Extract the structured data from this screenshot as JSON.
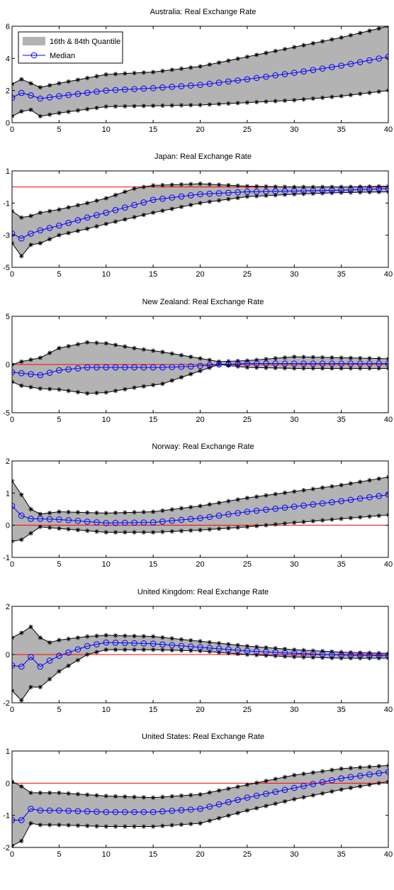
{
  "chart_data": [
    {
      "type": "area",
      "title": "Australia: Real Exchange Rate",
      "xlim": [
        0,
        40
      ],
      "ylim": [
        0,
        6
      ],
      "xticks": [
        0,
        5,
        10,
        15,
        20,
        25,
        30,
        35,
        40
      ],
      "yticks": [
        0,
        2,
        4,
        6
      ],
      "reference_y": 0,
      "legend": {
        "placement": "top-left",
        "entries": [
          "16th & 84th Quantile",
          "Median"
        ]
      },
      "anchors": {
        "lower": [
          [
            0,
            0.4
          ],
          [
            1,
            0.7
          ],
          [
            2,
            0.8
          ],
          [
            3,
            0.4
          ],
          [
            5,
            0.6
          ],
          [
            10,
            1.0
          ],
          [
            15,
            1.05
          ],
          [
            20,
            1.1
          ],
          [
            25,
            1.25
          ],
          [
            30,
            1.4
          ],
          [
            35,
            1.65
          ],
          [
            40,
            2.0
          ]
        ],
        "upper": [
          [
            0,
            2.4
          ],
          [
            1,
            2.7
          ],
          [
            2,
            2.45
          ],
          [
            3,
            2.2
          ],
          [
            5,
            2.45
          ],
          [
            10,
            3.0
          ],
          [
            15,
            3.15
          ],
          [
            20,
            3.5
          ],
          [
            25,
            4.1
          ],
          [
            30,
            4.7
          ],
          [
            35,
            5.3
          ],
          [
            40,
            6.0
          ]
        ],
        "median": [
          [
            0,
            1.55
          ],
          [
            1,
            1.85
          ],
          [
            2,
            1.7
          ],
          [
            3,
            1.5
          ],
          [
            5,
            1.65
          ],
          [
            10,
            2.0
          ],
          [
            15,
            2.15
          ],
          [
            20,
            2.35
          ],
          [
            25,
            2.7
          ],
          [
            30,
            3.1
          ],
          [
            35,
            3.55
          ],
          [
            40,
            4.1
          ]
        ]
      }
    },
    {
      "type": "area",
      "title": "Japan: Real Exchange Rate",
      "xlim": [
        0,
        40
      ],
      "ylim": [
        -5,
        1
      ],
      "xticks": [
        0,
        5,
        10,
        15,
        20,
        25,
        30,
        35,
        40
      ],
      "yticks": [
        -5,
        -3,
        -1,
        1
      ],
      "reference_y": 0,
      "anchors": {
        "lower": [
          [
            0,
            -3.5
          ],
          [
            1,
            -4.3
          ],
          [
            2,
            -3.6
          ],
          [
            3,
            -3.5
          ],
          [
            5,
            -3.0
          ],
          [
            8,
            -2.6
          ],
          [
            10,
            -2.3
          ],
          [
            15,
            -1.6
          ],
          [
            20,
            -1.0
          ],
          [
            25,
            -0.6
          ],
          [
            30,
            -0.45
          ],
          [
            35,
            -0.35
          ],
          [
            40,
            -0.3
          ]
        ],
        "upper": [
          [
            0,
            -1.5
          ],
          [
            1,
            -1.9
          ],
          [
            2,
            -1.8
          ],
          [
            3,
            -1.6
          ],
          [
            5,
            -1.4
          ],
          [
            8,
            -1.0
          ],
          [
            10,
            -0.7
          ],
          [
            13,
            -0.1
          ],
          [
            15,
            0.1
          ],
          [
            20,
            0.2
          ],
          [
            25,
            0.05
          ],
          [
            30,
            0.0
          ],
          [
            35,
            0.0
          ],
          [
            40,
            0.05
          ]
        ],
        "median": [
          [
            0,
            -2.9
          ],
          [
            1,
            -3.2
          ],
          [
            2,
            -2.9
          ],
          [
            3,
            -2.7
          ],
          [
            5,
            -2.4
          ],
          [
            8,
            -1.9
          ],
          [
            10,
            -1.6
          ],
          [
            15,
            -0.8
          ],
          [
            20,
            -0.45
          ],
          [
            25,
            -0.3
          ],
          [
            30,
            -0.25
          ],
          [
            35,
            -0.2
          ],
          [
            40,
            -0.1
          ]
        ]
      }
    },
    {
      "type": "area",
      "title": "New Zealand: Real Exchange Rate",
      "xlim": [
        0,
        40
      ],
      "ylim": [
        -5,
        5
      ],
      "xticks": [
        0,
        5,
        10,
        15,
        20,
        25,
        30,
        35,
        40
      ],
      "yticks": [
        -5,
        0,
        5
      ],
      "reference_y": 0,
      "anchors": {
        "lower": [
          [
            0,
            -1.8
          ],
          [
            1,
            -2.2
          ],
          [
            3,
            -2.5
          ],
          [
            5,
            -2.6
          ],
          [
            8,
            -3.0
          ],
          [
            10,
            -2.9
          ],
          [
            13,
            -2.4
          ],
          [
            16,
            -2.0
          ],
          [
            19,
            -1.0
          ],
          [
            22,
            0.0
          ],
          [
            25,
            -0.3
          ],
          [
            30,
            -0.4
          ],
          [
            35,
            -0.4
          ],
          [
            40,
            -0.4
          ]
        ],
        "upper": [
          [
            0,
            0.0
          ],
          [
            1,
            0.3
          ],
          [
            3,
            0.7
          ],
          [
            5,
            1.7
          ],
          [
            8,
            2.3
          ],
          [
            10,
            2.2
          ],
          [
            13,
            1.7
          ],
          [
            16,
            1.3
          ],
          [
            19,
            0.8
          ],
          [
            22,
            0.3
          ],
          [
            25,
            0.4
          ],
          [
            30,
            0.8
          ],
          [
            35,
            0.7
          ],
          [
            40,
            0.6
          ]
        ],
        "median": [
          [
            0,
            -0.8
          ],
          [
            1,
            -0.9
          ],
          [
            3,
            -1.1
          ],
          [
            5,
            -0.6
          ],
          [
            8,
            -0.3
          ],
          [
            10,
            -0.3
          ],
          [
            13,
            -0.3
          ],
          [
            16,
            -0.3
          ],
          [
            19,
            -0.2
          ],
          [
            22,
            0.0
          ],
          [
            25,
            0.1
          ],
          [
            30,
            0.1
          ],
          [
            35,
            0.1
          ],
          [
            40,
            0.1
          ]
        ]
      }
    },
    {
      "type": "area",
      "title": "Norway: Real Exchange Rate",
      "xlim": [
        0,
        40
      ],
      "ylim": [
        -1,
        2
      ],
      "xticks": [
        0,
        5,
        10,
        15,
        20,
        25,
        30,
        35,
        40
      ],
      "yticks": [
        -1,
        0,
        1,
        2
      ],
      "reference_y": 0,
      "anchors": {
        "lower": [
          [
            0,
            -0.5
          ],
          [
            1,
            -0.45
          ],
          [
            2,
            -0.25
          ],
          [
            3,
            -0.05
          ],
          [
            5,
            -0.1
          ],
          [
            10,
            -0.22
          ],
          [
            15,
            -0.22
          ],
          [
            20,
            -0.15
          ],
          [
            25,
            -0.05
          ],
          [
            30,
            0.08
          ],
          [
            35,
            0.2
          ],
          [
            40,
            0.32
          ]
        ],
        "upper": [
          [
            0,
            1.38
          ],
          [
            1,
            0.95
          ],
          [
            2,
            0.5
          ],
          [
            3,
            0.35
          ],
          [
            5,
            0.42
          ],
          [
            10,
            0.38
          ],
          [
            15,
            0.42
          ],
          [
            20,
            0.6
          ],
          [
            25,
            0.85
          ],
          [
            30,
            1.05
          ],
          [
            35,
            1.25
          ],
          [
            40,
            1.5
          ]
        ],
        "median": [
          [
            0,
            0.6
          ],
          [
            1,
            0.3
          ],
          [
            2,
            0.2
          ],
          [
            3,
            0.2
          ],
          [
            5,
            0.18
          ],
          [
            10,
            0.07
          ],
          [
            15,
            0.09
          ],
          [
            20,
            0.22
          ],
          [
            25,
            0.42
          ],
          [
            30,
            0.58
          ],
          [
            35,
            0.75
          ],
          [
            40,
            0.95
          ]
        ]
      }
    },
    {
      "type": "area",
      "title": "United Kingdom: Real Exchange Rate",
      "xlim": [
        0,
        40
      ],
      "ylim": [
        -2,
        2
      ],
      "xticks": [
        0,
        5,
        10,
        15,
        20,
        25,
        30,
        35,
        40
      ],
      "yticks": [
        -2,
        0,
        2
      ],
      "reference_y": 0,
      "anchors": {
        "lower": [
          [
            0,
            -1.5
          ],
          [
            1,
            -1.9
          ],
          [
            2,
            -1.35
          ],
          [
            3,
            -1.35
          ],
          [
            5,
            -0.7
          ],
          [
            8,
            0.0
          ],
          [
            10,
            0.2
          ],
          [
            15,
            0.2
          ],
          [
            20,
            0.15
          ],
          [
            25,
            0.0
          ],
          [
            30,
            -0.1
          ],
          [
            35,
            -0.15
          ],
          [
            40,
            -0.15
          ]
        ],
        "upper": [
          [
            0,
            0.7
          ],
          [
            1,
            0.9
          ],
          [
            2,
            1.15
          ],
          [
            3,
            0.7
          ],
          [
            4,
            0.5
          ],
          [
            5,
            0.6
          ],
          [
            8,
            0.75
          ],
          [
            10,
            0.8
          ],
          [
            15,
            0.75
          ],
          [
            20,
            0.55
          ],
          [
            25,
            0.35
          ],
          [
            30,
            0.2
          ],
          [
            35,
            0.1
          ],
          [
            40,
            0.05
          ]
        ],
        "median": [
          [
            0,
            -0.45
          ],
          [
            1,
            -0.5
          ],
          [
            2,
            -0.1
          ],
          [
            3,
            -0.5
          ],
          [
            4,
            -0.25
          ],
          [
            5,
            -0.05
          ],
          [
            8,
            0.35
          ],
          [
            10,
            0.5
          ],
          [
            15,
            0.45
          ],
          [
            20,
            0.3
          ],
          [
            25,
            0.15
          ],
          [
            30,
            0.05
          ],
          [
            35,
            -0.02
          ],
          [
            40,
            -0.05
          ]
        ]
      }
    },
    {
      "type": "area",
      "title": "United States: Real Exchange Rate",
      "xlim": [
        0,
        40
      ],
      "ylim": [
        -2,
        1
      ],
      "xticks": [
        0,
        5,
        10,
        15,
        20,
        25,
        30,
        35,
        40
      ],
      "yticks": [
        -2,
        -1,
        0,
        1
      ],
      "reference_y": 0,
      "anchors": {
        "lower": [
          [
            0,
            -1.95
          ],
          [
            1,
            -1.8
          ],
          [
            2,
            -1.25
          ],
          [
            3,
            -1.3
          ],
          [
            5,
            -1.3
          ],
          [
            10,
            -1.35
          ],
          [
            15,
            -1.35
          ],
          [
            20,
            -1.25
          ],
          [
            25,
            -0.85
          ],
          [
            30,
            -0.5
          ],
          [
            35,
            -0.2
          ],
          [
            40,
            0.05
          ]
        ],
        "upper": [
          [
            0,
            0.05
          ],
          [
            1,
            -0.1
          ],
          [
            2,
            -0.3
          ],
          [
            3,
            -0.3
          ],
          [
            5,
            -0.3
          ],
          [
            10,
            -0.4
          ],
          [
            15,
            -0.45
          ],
          [
            20,
            -0.35
          ],
          [
            25,
            -0.05
          ],
          [
            30,
            0.25
          ],
          [
            35,
            0.45
          ],
          [
            40,
            0.55
          ]
        ],
        "median": [
          [
            0,
            -1.15
          ],
          [
            1,
            -1.15
          ],
          [
            2,
            -0.8
          ],
          [
            3,
            -0.85
          ],
          [
            5,
            -0.85
          ],
          [
            10,
            -0.9
          ],
          [
            15,
            -0.9
          ],
          [
            20,
            -0.8
          ],
          [
            25,
            -0.45
          ],
          [
            30,
            -0.15
          ],
          [
            35,
            0.15
          ],
          [
            40,
            0.35
          ]
        ]
      }
    }
  ],
  "colors": {
    "band": "#b3b3b3",
    "band_edge": "#000000",
    "median": "#0000ff",
    "reference": "#ff0000",
    "axes": "#000000",
    "background": "#ffffff"
  }
}
